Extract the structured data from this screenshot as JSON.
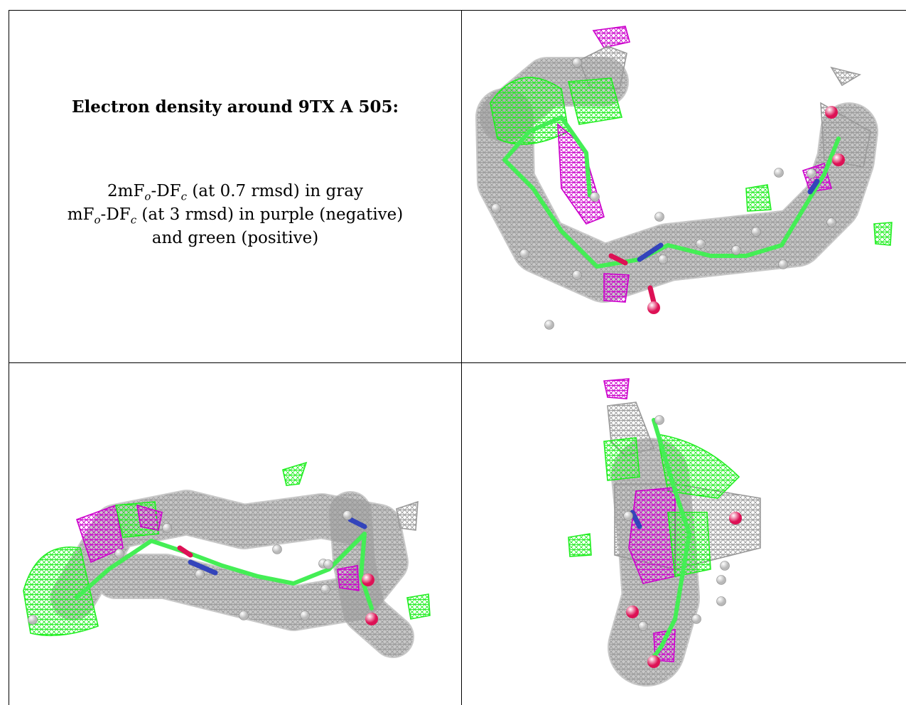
{
  "title": "Electron density around 9TX A 505:",
  "legend": {
    "line1_prefix": "2mF",
    "line1_sub1": "o",
    "line1_mid": "-DF",
    "line1_sub2": "c",
    "line1_suffix": " (at 0.7 rmsd) in gray",
    "line2_prefix": "mF",
    "line2_sub1": "o",
    "line2_mid": "-DF",
    "line2_sub2": "c",
    "line2_suffix": " (at 3 rmsd) in purple (negative)",
    "line3": "and green (positive)"
  },
  "colors": {
    "gray_mesh": "#9a9a9a",
    "negative_mesh": "#cc00cc",
    "positive_mesh": "#22ee22",
    "carbon": "#44ee55",
    "nitrogen": "#3344bb",
    "oxygen": "#dd1155",
    "hydrogen": "#e8e8e8"
  },
  "views": [
    "view-1",
    "view-2",
    "view-3"
  ]
}
